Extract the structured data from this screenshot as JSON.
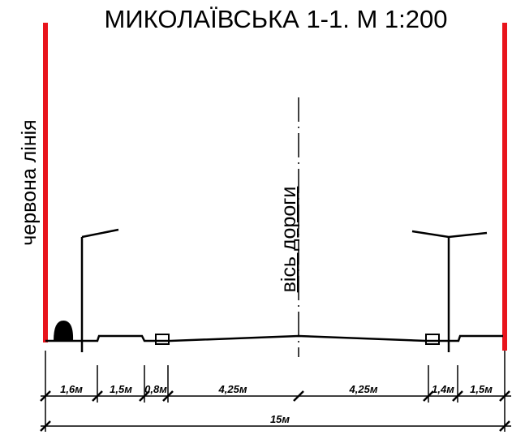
{
  "title": "МИКОЛАЇВСЬКА 1-1. М 1:200",
  "red_line_label": "червона лінія",
  "axis_label": "вісь дороги",
  "dimensions": [
    "1,6м",
    "1,5м",
    "0,8м",
    "4,25м",
    "4,25м",
    "1,4м",
    "1,5м"
  ],
  "total": "15м"
}
